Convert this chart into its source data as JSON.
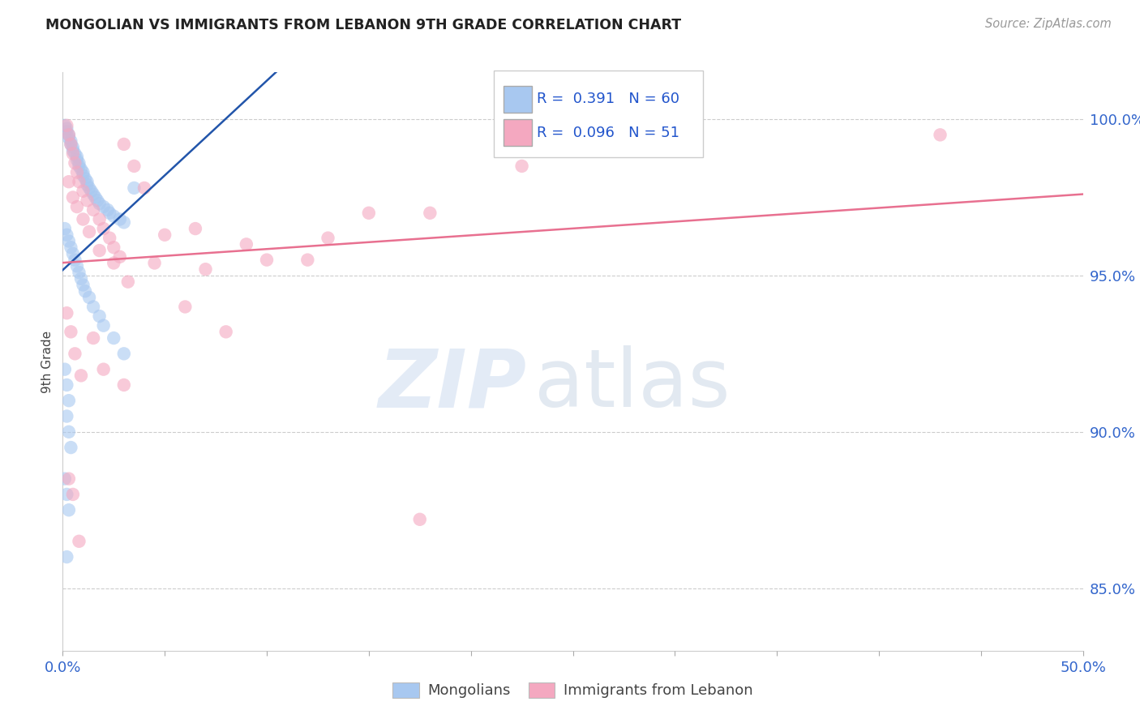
{
  "title": "MONGOLIAN VS IMMIGRANTS FROM LEBANON 9TH GRADE CORRELATION CHART",
  "source": "Source: ZipAtlas.com",
  "ylabel": "9th Grade",
  "legend_blue_R": "0.391",
  "legend_blue_N": "60",
  "legend_pink_R": "0.096",
  "legend_pink_N": "51",
  "label_blue": "Mongolians",
  "label_pink": "Immigrants from Lebanon",
  "blue_color": "#A8C8F0",
  "pink_color": "#F4A8C0",
  "trendline_blue_color": "#2255AA",
  "trendline_pink_color": "#E87090",
  "blue_scatter_x": [
    0.1,
    0.2,
    0.2,
    0.3,
    0.3,
    0.4,
    0.4,
    0.5,
    0.5,
    0.6,
    0.7,
    0.7,
    0.8,
    0.8,
    0.9,
    1.0,
    1.0,
    1.1,
    1.2,
    1.2,
    1.3,
    1.4,
    1.5,
    1.6,
    1.7,
    1.8,
    2.0,
    2.2,
    2.3,
    2.5,
    2.8,
    3.0,
    3.5,
    0.1,
    0.2,
    0.3,
    0.4,
    0.5,
    0.6,
    0.7,
    0.8,
    0.9,
    1.0,
    1.1,
    1.3,
    1.5,
    1.8,
    2.0,
    2.5,
    3.0,
    0.1,
    0.2,
    0.3,
    0.2,
    0.3,
    0.4,
    0.1,
    0.2,
    0.3,
    0.2
  ],
  "blue_scatter_y": [
    99.8,
    99.7,
    99.6,
    99.5,
    99.4,
    99.3,
    99.2,
    99.1,
    99.0,
    98.9,
    98.8,
    98.7,
    98.6,
    98.5,
    98.4,
    98.3,
    98.2,
    98.1,
    98.0,
    97.9,
    97.8,
    97.7,
    97.6,
    97.5,
    97.4,
    97.3,
    97.2,
    97.1,
    97.0,
    96.9,
    96.8,
    96.7,
    97.8,
    96.5,
    96.3,
    96.1,
    95.9,
    95.7,
    95.5,
    95.3,
    95.1,
    94.9,
    94.7,
    94.5,
    94.3,
    94.0,
    93.7,
    93.4,
    93.0,
    92.5,
    92.0,
    91.5,
    91.0,
    90.5,
    90.0,
    89.5,
    88.5,
    88.0,
    87.5,
    86.0
  ],
  "pink_scatter_x": [
    0.2,
    0.3,
    0.4,
    0.5,
    0.6,
    0.7,
    0.8,
    1.0,
    1.2,
    1.5,
    1.8,
    2.0,
    2.3,
    2.5,
    2.8,
    3.0,
    3.5,
    4.0,
    5.0,
    6.0,
    7.0,
    8.0,
    9.0,
    10.0,
    12.0,
    13.0,
    15.0,
    17.5,
    18.0,
    22.5,
    0.3,
    0.5,
    0.7,
    1.0,
    1.3,
    1.8,
    2.5,
    3.2,
    4.5,
    6.5,
    0.2,
    0.4,
    0.6,
    0.9,
    1.5,
    2.0,
    3.0,
    0.3,
    0.5,
    0.8,
    43.0
  ],
  "pink_scatter_y": [
    99.8,
    99.5,
    99.2,
    98.9,
    98.6,
    98.3,
    98.0,
    97.7,
    97.4,
    97.1,
    96.8,
    96.5,
    96.2,
    95.9,
    95.6,
    99.2,
    98.5,
    97.8,
    96.3,
    94.0,
    95.2,
    93.2,
    96.0,
    95.5,
    95.5,
    96.2,
    97.0,
    87.2,
    97.0,
    98.5,
    98.0,
    97.5,
    97.2,
    96.8,
    96.4,
    95.8,
    95.4,
    94.8,
    95.4,
    96.5,
    93.8,
    93.2,
    92.5,
    91.8,
    93.0,
    92.0,
    91.5,
    88.5,
    88.0,
    86.5,
    99.5
  ],
  "xlim": [
    0,
    50
  ],
  "ylim": [
    83.0,
    101.5
  ],
  "ytick_vals": [
    85.0,
    90.0,
    95.0,
    100.0
  ],
  "xtick_positions": [
    0,
    5,
    10,
    15,
    20,
    25,
    30,
    35,
    40,
    45,
    50
  ]
}
